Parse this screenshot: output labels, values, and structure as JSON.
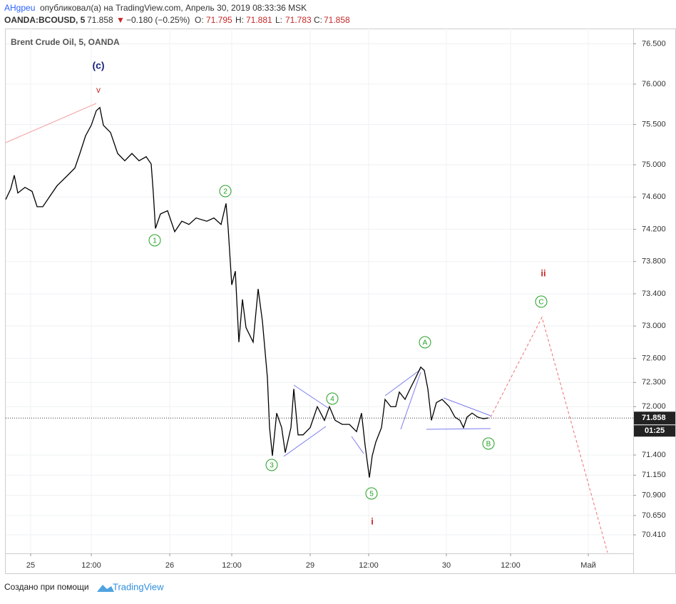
{
  "header": {
    "author": "AHgpeu",
    "published": "опубликовал(а) на TradingView.com, Апрель 30, 2019 08:33:36 MSK",
    "symbol": "OANDA:BCOUSD, 5",
    "price": "71.858",
    "arrow": "▼",
    "change": "−0.180 (−0.25%)",
    "o_label": "O:",
    "o": "71.795",
    "h_label": "H:",
    "h": "71.881",
    "l_label": "L:",
    "l": "71.783",
    "c_label": "C:",
    "c": "71.858"
  },
  "chart_data": {
    "type": "line",
    "title": "Brent Crude Oil, 5, OANDA",
    "color": "#000000",
    "x": [
      0,
      7,
      12,
      17,
      27,
      37,
      44,
      52,
      62,
      72,
      87,
      97,
      104,
      112,
      120,
      127,
      132,
      137,
      147,
      157,
      167,
      177,
      187,
      197,
      204,
      207,
      210,
      217,
      227,
      237,
      247,
      257,
      267,
      282,
      292,
      302,
      309,
      312,
      317,
      322,
      327,
      332,
      337,
      347,
      354,
      360,
      367,
      370,
      374,
      380,
      387,
      392,
      400,
      404,
      410,
      417,
      427,
      437,
      447,
      454,
      462,
      472,
      482,
      492,
      499,
      504,
      510,
      514,
      519,
      527,
      532,
      540,
      547,
      552,
      560,
      567,
      575,
      582,
      587,
      592,
      597,
      604,
      612,
      622,
      630,
      637,
      642,
      647,
      654,
      662,
      670,
      677
    ],
    "values": [
      74.57,
      74.7,
      74.87,
      74.65,
      74.72,
      74.67,
      74.48,
      74.48,
      74.61,
      74.74,
      74.87,
      74.96,
      75.14,
      75.36,
      75.49,
      75.67,
      75.71,
      75.49,
      75.4,
      75.14,
      75.05,
      75.14,
      75.05,
      75.1,
      75.01,
      74.65,
      74.21,
      74.39,
      74.43,
      74.17,
      74.3,
      74.26,
      74.34,
      74.3,
      74.34,
      74.26,
      74.52,
      74.21,
      73.51,
      73.68,
      72.8,
      73.33,
      72.98,
      72.8,
      73.46,
      73.06,
      72.36,
      71.74,
      71.39,
      71.92,
      71.74,
      71.43,
      71.74,
      72.22,
      71.65,
      71.65,
      71.74,
      72.0,
      71.83,
      72.0,
      71.83,
      71.78,
      71.78,
      71.69,
      71.92,
      71.52,
      71.12,
      71.39,
      71.56,
      71.74,
      72.09,
      72.0,
      72.0,
      72.18,
      72.09,
      72.22,
      72.36,
      72.49,
      72.45,
      72.22,
      71.83,
      72.05,
      72.09,
      72.0,
      71.87,
      71.83,
      71.74,
      71.87,
      71.92,
      71.87,
      71.85,
      71.86
    ],
    "xlim": [
      0,
      880
    ],
    "xticks": [
      {
        "value": 35,
        "label": "25"
      },
      {
        "value": 120,
        "label": "12:00"
      },
      {
        "value": 230,
        "label": "26"
      },
      {
        "value": 317,
        "label": "12:00"
      },
      {
        "value": 427,
        "label": "29"
      },
      {
        "value": 509,
        "label": "12:00"
      },
      {
        "value": 618,
        "label": "30"
      },
      {
        "value": 708,
        "label": "12:00"
      },
      {
        "value": 817,
        "label": "Май"
      }
    ],
    "ylim": [
      70.18,
      76.69
    ],
    "yticks": [
      {
        "value": 76.5,
        "label": "76.500"
      },
      {
        "value": 76.0,
        "label": "76.000"
      },
      {
        "value": 75.5,
        "label": "75.500"
      },
      {
        "value": 75.0,
        "label": "75.000"
      },
      {
        "value": 74.6,
        "label": "74.600"
      },
      {
        "value": 74.2,
        "label": "74.200"
      },
      {
        "value": 73.8,
        "label": "73.800"
      },
      {
        "value": 73.4,
        "label": "73.400"
      },
      {
        "value": 73.0,
        "label": "73.000"
      },
      {
        "value": 72.6,
        "label": "72.600"
      },
      {
        "value": 72.3,
        "label": "72.300"
      },
      {
        "value": 72.0,
        "label": "72.000"
      },
      {
        "value": 71.4,
        "label": "71.400"
      },
      {
        "value": 71.15,
        "label": "71.150"
      },
      {
        "value": 70.9,
        "label": "70.900"
      },
      {
        "value": 70.65,
        "label": "70.650"
      },
      {
        "value": 70.41,
        "label": "70.410"
      }
    ],
    "grid": true,
    "last_price": 71.858,
    "countdown": "01:25",
    "annotations": [
      "(c)",
      "v",
      "1",
      "2",
      "3",
      "4",
      "5",
      "A",
      "B",
      "C",
      "i",
      "ii"
    ]
  },
  "footer": {
    "text": "Создано при помощи",
    "brand": "TradingView"
  }
}
